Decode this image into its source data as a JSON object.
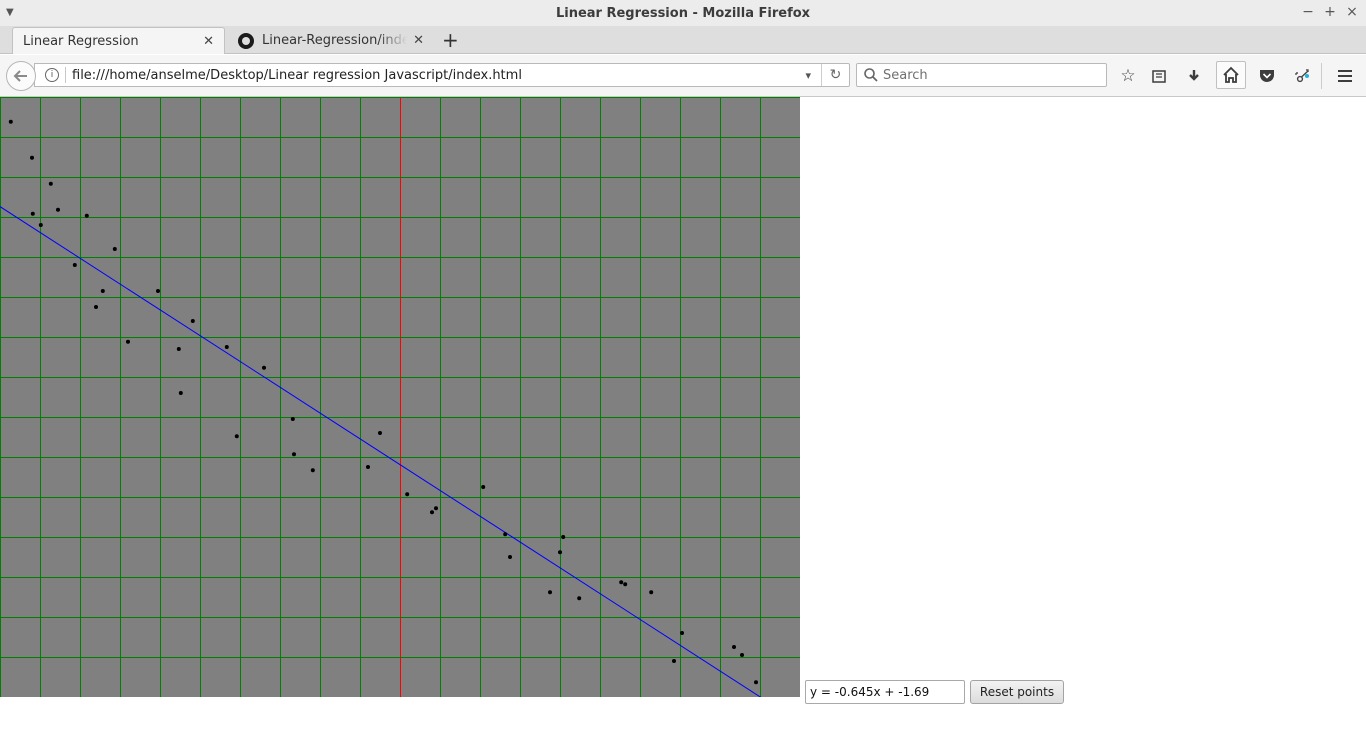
{
  "window": {
    "title": "Linear Regression - Mozilla Firefox"
  },
  "tabs": [
    {
      "label": "Linear Regression",
      "active": true
    },
    {
      "label": "Linear-Regression/index.html",
      "active": false
    }
  ],
  "toolbar": {
    "url": "file:///home/anselme/Desktop/Linear regression Javascript/index.html",
    "search_placeholder": "Search"
  },
  "page": {
    "equation": "y = -0.645x + -1.69",
    "reset_label": "Reset points"
  },
  "chart_data": {
    "type": "scatter",
    "xlim": [
      -10,
      10
    ],
    "ylim": [
      -7.5,
      7.5
    ],
    "grid_step": 1,
    "grid": true,
    "colors": {
      "background": "#808080",
      "grid": "#008000",
      "axes": "#ff0000",
      "regression_line": "#0000ff",
      "points": "#000000"
    },
    "regression": {
      "slope": -0.645,
      "intercept": -1.69
    },
    "points": [
      [
        -9.73,
        6.88
      ],
      [
        -9.2,
        5.98
      ],
      [
        -8.73,
        5.33
      ],
      [
        -9.18,
        4.58
      ],
      [
        -8.55,
        4.68
      ],
      [
        -8.98,
        4.3
      ],
      [
        -7.83,
        4.53
      ],
      [
        -7.13,
        3.7
      ],
      [
        -8.13,
        3.3
      ],
      [
        -7.43,
        2.65
      ],
      [
        -7.6,
        2.25
      ],
      [
        -6.05,
        2.65
      ],
      [
        -5.18,
        1.9
      ],
      [
        -6.8,
        1.38
      ],
      [
        -5.53,
        1.2
      ],
      [
        -4.33,
        1.25
      ],
      [
        -3.4,
        0.73
      ],
      [
        -5.48,
        0.1
      ],
      [
        -4.08,
        -0.98
      ],
      [
        -2.68,
        -0.55
      ],
      [
        -0.5,
        -0.9
      ],
      [
        -2.65,
        -1.43
      ],
      [
        -2.18,
        -1.83
      ],
      [
        -0.8,
        -1.75
      ],
      [
        0.18,
        -2.43
      ],
      [
        0.8,
        -2.88
      ],
      [
        0.9,
        -2.78
      ],
      [
        2.08,
        -2.25
      ],
      [
        2.63,
        -3.43
      ],
      [
        2.75,
        -4.0
      ],
      [
        4.08,
        -3.5
      ],
      [
        4.0,
        -3.88
      ],
      [
        3.75,
        -4.88
      ],
      [
        4.48,
        -5.03
      ],
      [
        5.53,
        -4.63
      ],
      [
        5.63,
        -4.68
      ],
      [
        6.28,
        -4.88
      ],
      [
        7.05,
        -5.9
      ],
      [
        6.85,
        -6.6
      ],
      [
        8.35,
        -6.25
      ],
      [
        8.55,
        -6.45
      ],
      [
        8.9,
        -7.13
      ]
    ]
  }
}
